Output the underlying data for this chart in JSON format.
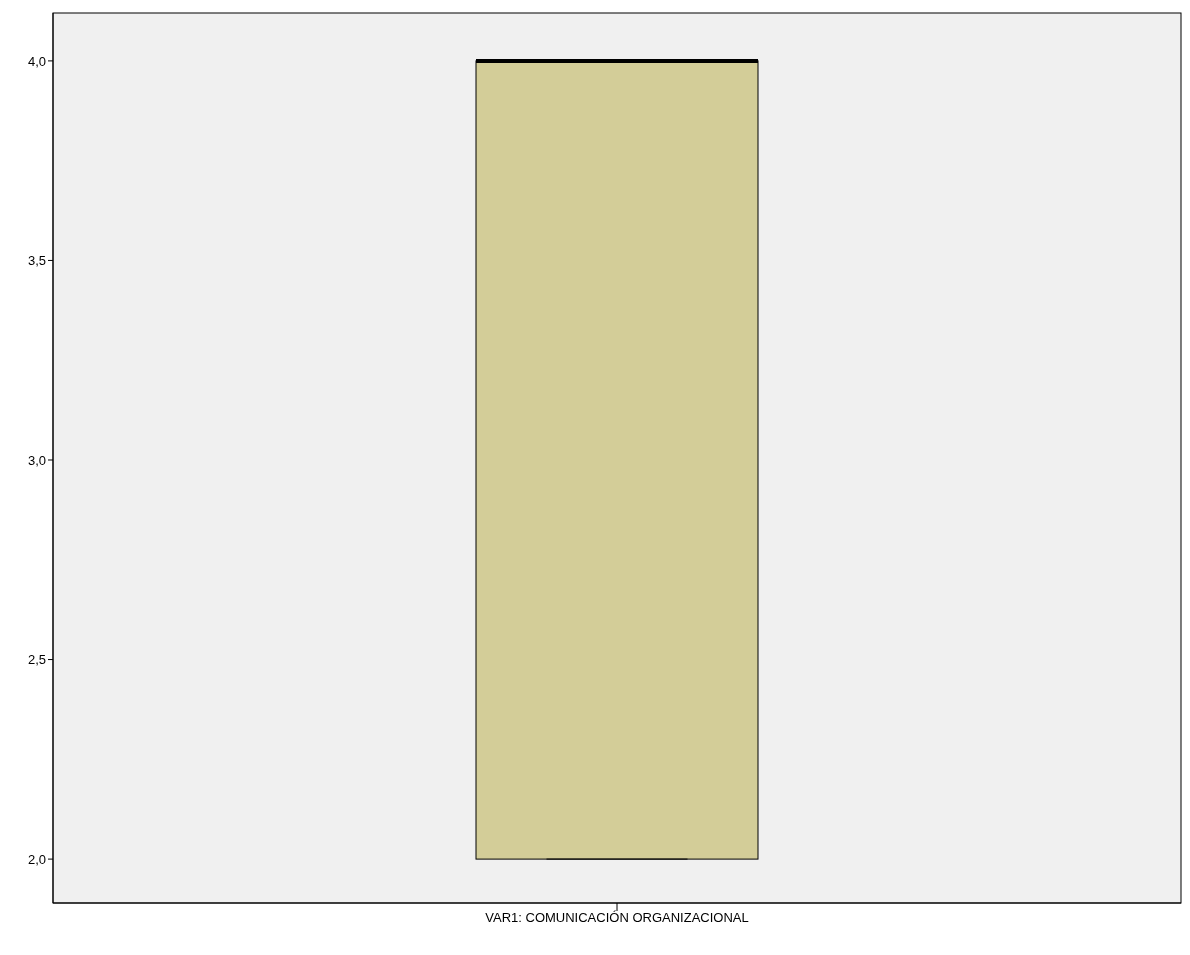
{
  "chart_data": {
    "type": "box",
    "categories": [
      "VAR1: COMUNICACIÓN ORGANIZACIONAL"
    ],
    "boxes": [
      {
        "low": 2,
        "q1": 2,
        "median": 4,
        "q3": 4,
        "high": 4
      }
    ],
    "color": "#d3cd98",
    "ylim": [
      1.89,
      4.12
    ],
    "yticks": [
      {
        "value": 2,
        "label": "2,0"
      },
      {
        "value": 2.5,
        "label": "2,5"
      },
      {
        "value": 3,
        "label": "3,0"
      },
      {
        "value": 3.5,
        "label": "3,5"
      },
      {
        "value": 4,
        "label": "4,0"
      }
    ]
  }
}
